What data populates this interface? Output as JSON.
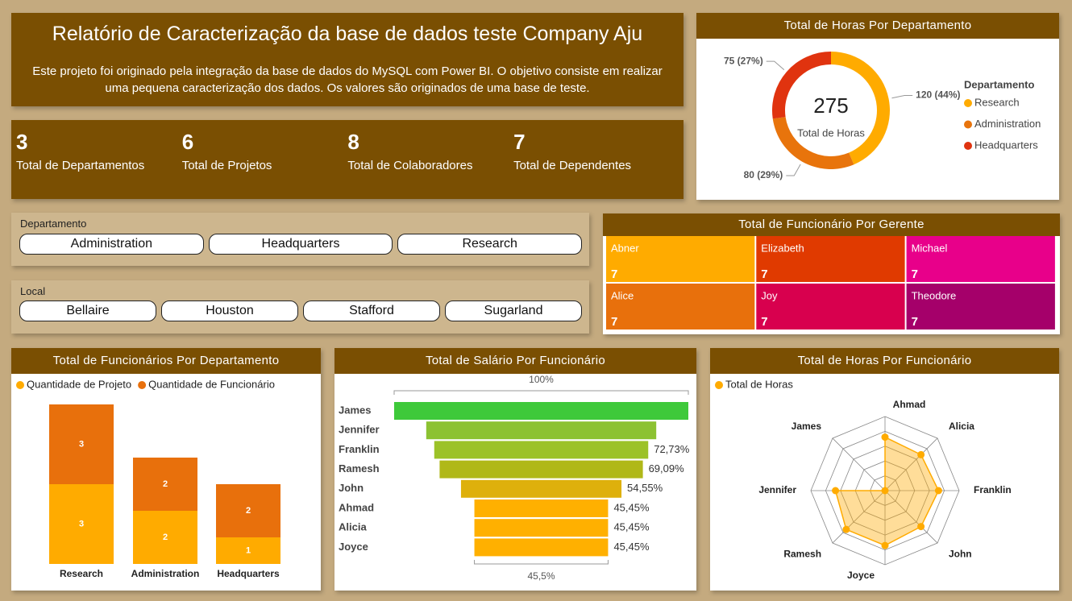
{
  "header": {
    "title": "Relatório de Caracterização da base de dados teste Company Aju",
    "description": "Este projeto foi originado pela integração da base de dados do MySQL com Power BI. O objetivo consiste em realizar uma pequena caracterização dos dados. Os valores são originados de uma base de teste."
  },
  "kpis": [
    {
      "value": 3,
      "label": "Total de Departamentos"
    },
    {
      "value": 6,
      "label": "Total de Projetos"
    },
    {
      "value": 8,
      "label": "Total de Colaboradores"
    },
    {
      "value": 7,
      "label": "Total de Dependentes"
    }
  ],
  "slicers": [
    {
      "title": "Departamento",
      "options": [
        "Administration",
        "Headquarters",
        "Research"
      ]
    },
    {
      "title": "Local",
      "options": [
        "Bellaire",
        "Houston",
        "Stafford",
        "Sugarland"
      ]
    }
  ],
  "chart_data": [
    {
      "type": "donut",
      "title": "Total de Horas Por Departamento",
      "legend_title": "Departamento",
      "categories": [
        "Research",
        "Administration",
        "Headquarters"
      ],
      "values": [
        120,
        80,
        75
      ],
      "value_labels": [
        "120 (44%)",
        "80 (29%)",
        "75 (27%)"
      ],
      "colors": [
        "#ffab00",
        "#e8740c",
        "#e0330f"
      ],
      "center_value": 275,
      "center_label": "Total de Horas"
    },
    {
      "type": "treemap",
      "title": "Total de Funcionário Por Gerente",
      "categories": [
        "Abner",
        "Alice",
        "Elizabeth",
        "Joy",
        "Michael",
        "Theodore"
      ],
      "values": [
        7,
        7,
        7,
        7,
        7,
        7
      ],
      "colors": [
        "#ffab00",
        "#e8700c",
        "#e03a00",
        "#d8004e",
        "#e8008a",
        "#a5006a"
      ]
    },
    {
      "type": "stacked_bar",
      "title": "Total de Funcionários Por Departamento",
      "categories": [
        "Research",
        "Administration",
        "Headquarters"
      ],
      "series": [
        {
          "name": "Quantidade de Projeto",
          "color": "#ffab00",
          "values": [
            3,
            2,
            1
          ]
        },
        {
          "name": "Quantidade de Funcionário",
          "color": "#e8700c",
          "values": [
            3,
            2,
            2
          ]
        }
      ]
    },
    {
      "type": "funnel",
      "title": "Total de Salário Por Funcionário",
      "categories": [
        "James",
        "Jennifer",
        "Franklin",
        "Ramesh",
        "John",
        "Ahmad",
        "Alicia",
        "Joyce"
      ],
      "values": [
        100,
        78.18,
        72.73,
        69.09,
        54.55,
        45.45,
        45.45,
        45.45
      ],
      "value_labels": [
        null,
        null,
        "72,73%",
        "69,09%",
        "54,55%",
        "45,45%",
        "45,45%",
        "45,45%"
      ],
      "colors": [
        "#3ec93a",
        "#8cc232",
        "#9cc228",
        "#b0b818",
        "#deb00c",
        "#ffb000",
        "#ffb000",
        "#ffb000"
      ],
      "top_label": "100%",
      "bottom_label": "45,5%"
    },
    {
      "type": "radar",
      "title": "Total de Horas Por Funcionário",
      "categories": [
        "Ahmad",
        "Alicia",
        "Franklin",
        "John",
        "Joyce",
        "Ramesh",
        "Jennifer",
        "James"
      ],
      "series": [
        {
          "name": "Total de Horas",
          "color": "#ffab00",
          "values": [
            40,
            38,
            40,
            38,
            41,
            41,
            37,
            0
          ]
        }
      ]
    }
  ]
}
